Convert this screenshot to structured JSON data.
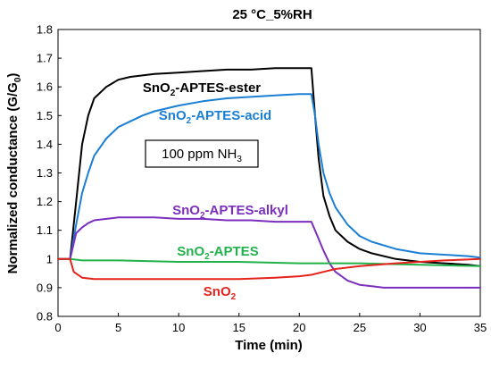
{
  "chart_data": {
    "type": "line",
    "title": "25 °C_5%RH",
    "xlabel": "Time (min)",
    "ylabel_main": "Normalized conductance (G/G",
    "ylabel_sub": "0",
    "ylabel_close": ")",
    "xlim": [
      0,
      35
    ],
    "ylim": [
      0.8,
      1.8
    ],
    "xticks": [
      "0",
      "5",
      "10",
      "15",
      "20",
      "25",
      "30",
      "35"
    ],
    "yticks": [
      "0.8",
      "0.9",
      "1",
      "1.1",
      "1.2",
      "1.3",
      "1.4",
      "1.5",
      "1.6",
      "1.7",
      "1.8"
    ],
    "box_label": {
      "main": "100 ppm NH",
      "sub": "3"
    },
    "series": [
      {
        "label_main": "SnO",
        "label_sub": "2",
        "label_rest": "-APTES-ester",
        "color": "#000000",
        "x": [
          0,
          1,
          1.5,
          2,
          2.5,
          3,
          4,
          5,
          6,
          7,
          8,
          10,
          12,
          14,
          16,
          18,
          20,
          21,
          21.3,
          21.6,
          22,
          22.5,
          23,
          24,
          25,
          26,
          28,
          30,
          32,
          34,
          35
        ],
        "y": [
          1.0,
          1.0,
          1.2,
          1.4,
          1.5,
          1.56,
          1.6,
          1.625,
          1.635,
          1.64,
          1.645,
          1.65,
          1.655,
          1.66,
          1.66,
          1.665,
          1.665,
          1.665,
          1.5,
          1.35,
          1.22,
          1.15,
          1.1,
          1.06,
          1.035,
          1.02,
          1.0,
          0.99,
          0.985,
          0.98,
          0.975
        ]
      },
      {
        "label_main": "SnO",
        "label_sub": "2",
        "label_rest": "-APTES-acid",
        "color": "#1a7fd4",
        "x": [
          0,
          1,
          1.5,
          2,
          2.5,
          3,
          4,
          5,
          6,
          7,
          8,
          10,
          12,
          14,
          16,
          18,
          20,
          21,
          21.3,
          21.6,
          22,
          22.5,
          23,
          24,
          25,
          26,
          28,
          30,
          32,
          34,
          35
        ],
        "y": [
          1.0,
          1.0,
          1.12,
          1.23,
          1.3,
          1.36,
          1.42,
          1.46,
          1.48,
          1.5,
          1.515,
          1.535,
          1.55,
          1.56,
          1.565,
          1.57,
          1.575,
          1.575,
          1.5,
          1.4,
          1.3,
          1.23,
          1.18,
          1.12,
          1.08,
          1.06,
          1.035,
          1.02,
          1.015,
          1.01,
          1.005
        ]
      },
      {
        "label_main": "SnO",
        "label_sub": "2",
        "label_rest": "-APTES-alkyl",
        "color": "#7b2fbe",
        "x": [
          0,
          1,
          1.5,
          2,
          2.5,
          3,
          4,
          5,
          6,
          8,
          10,
          12,
          14,
          16,
          18,
          20,
          21,
          21.5,
          22,
          22.5,
          23,
          24,
          25,
          26,
          27,
          28,
          30,
          32,
          34,
          35
        ],
        "y": [
          1.0,
          1.0,
          1.09,
          1.11,
          1.125,
          1.135,
          1.14,
          1.145,
          1.145,
          1.145,
          1.14,
          1.14,
          1.135,
          1.135,
          1.13,
          1.13,
          1.13,
          1.08,
          1.03,
          0.985,
          0.955,
          0.925,
          0.91,
          0.905,
          0.9,
          0.9,
          0.9,
          0.9,
          0.9,
          0.9
        ]
      },
      {
        "label_main": "SnO",
        "label_sub": "2",
        "label_rest": "-APTES",
        "color": "#22b24c",
        "x": [
          0,
          1,
          2,
          5,
          10,
          15,
          20,
          21,
          25,
          30,
          35
        ],
        "y": [
          1.0,
          1.0,
          0.995,
          0.995,
          0.99,
          0.99,
          0.985,
          0.985,
          0.985,
          0.98,
          0.975
        ]
      },
      {
        "label_main": "SnO",
        "label_sub": "2",
        "label_rest": "",
        "color": "#e5231b",
        "x": [
          0,
          1,
          1.3,
          2,
          3,
          5,
          8,
          10,
          15,
          18,
          20,
          21,
          22,
          23,
          25,
          28,
          30,
          32,
          35
        ],
        "y": [
          1.0,
          1.0,
          0.955,
          0.935,
          0.93,
          0.93,
          0.93,
          0.93,
          0.93,
          0.935,
          0.94,
          0.945,
          0.955,
          0.965,
          0.975,
          0.985,
          0.99,
          0.995,
          1.0
        ]
      }
    ]
  }
}
